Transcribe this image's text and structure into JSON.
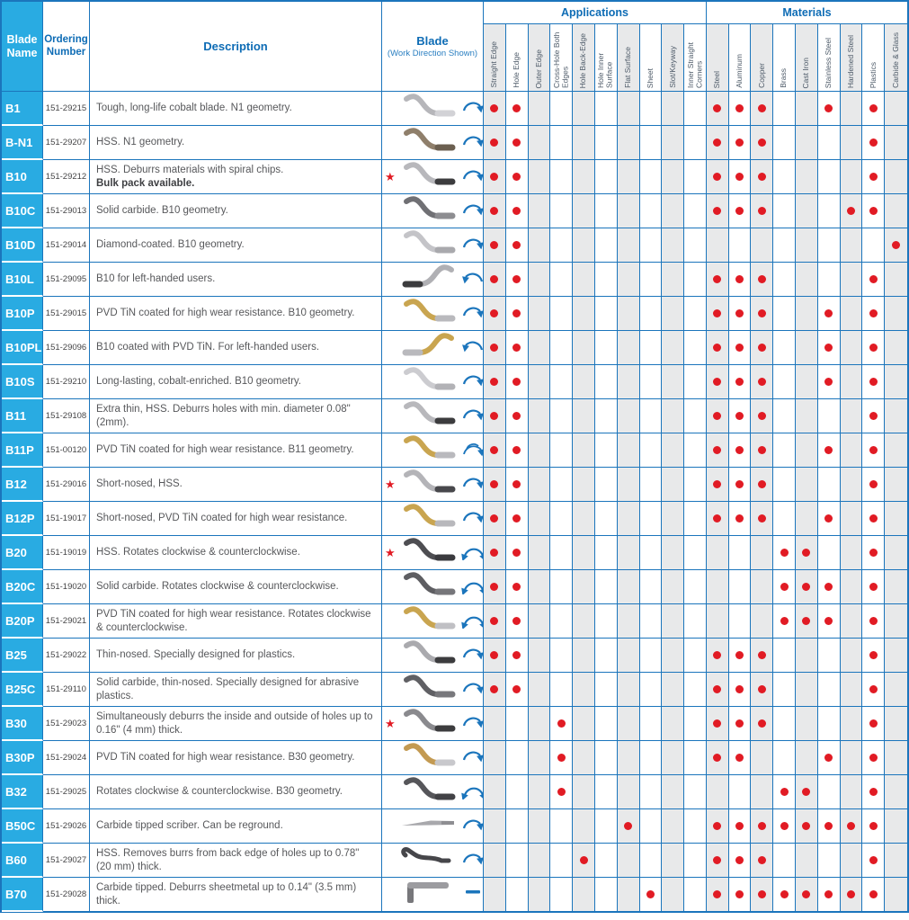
{
  "colors": {
    "brand_cyan": "#29abe2",
    "border_blue": "#1b75bc",
    "header_text_blue": "#0e6cb5",
    "dot_red": "#e11b24",
    "shade_gray": "#e8e9ea",
    "arrow_blue": "#1b75bc"
  },
  "header": {
    "blade_name": "Blade Name",
    "ordering_number": "Ordering Number",
    "description": "Description",
    "blade": "Blade",
    "blade_sub": "(Work Direction Shown)",
    "applications_group": "Applications",
    "materials_group": "Materials",
    "applications": [
      "Straight Edge",
      "Hole Edge",
      "Outer Edge",
      "Cross-Hole Both Edges",
      "Hole Back-Edge",
      "Hole Inner Surface",
      "Flat Surface",
      "Sheet",
      "Slot/Keyway",
      "Inner Straight Corners"
    ],
    "materials": [
      "Steel",
      "Aluminum",
      "Copper",
      "Brass",
      "Cast Iron",
      "Stainless Steel",
      "Hardened Steel",
      "Plastics",
      "Carbide & Glass"
    ]
  },
  "rows": [
    {
      "name": "B1",
      "order": "151-29215",
      "description": "Tough, long-life cobalt blade. N1 geometry.",
      "description_bold": "",
      "star": false,
      "blade": {
        "shape": "s",
        "color": "#b6b6ba",
        "tip": "#d2d2d6"
      },
      "arrow": "cw",
      "applications": [
        0,
        1
      ],
      "materials": [
        0,
        1,
        2,
        5,
        7
      ]
    },
    {
      "name": "B-N1",
      "order": "151-29207",
      "description": "HSS. N1 geometry.",
      "description_bold": "",
      "star": false,
      "blade": {
        "shape": "s",
        "color": "#8f7f6b",
        "tip": "#6b5f50"
      },
      "arrow": "cw",
      "applications": [
        0,
        1
      ],
      "materials": [
        0,
        1,
        2,
        7
      ]
    },
    {
      "name": "B10",
      "order": "151-29212",
      "description": "HSS. Deburrs materials with spiral chips.",
      "description_bold": "Bulk pack available.",
      "star": true,
      "blade": {
        "shape": "s",
        "color": "#b8b8bc",
        "tip": "#3c3c3e"
      },
      "arrow": "cw",
      "applications": [
        0,
        1
      ],
      "materials": [
        0,
        1,
        2,
        7
      ]
    },
    {
      "name": "B10C",
      "order": "151-29013",
      "description": "Solid carbide. B10 geometry.",
      "description_bold": "",
      "star": false,
      "blade": {
        "shape": "s",
        "color": "#707074",
        "tip": "#8d8d91"
      },
      "arrow": "cw",
      "applications": [
        0,
        1
      ],
      "materials": [
        0,
        1,
        2,
        6,
        7
      ]
    },
    {
      "name": "B10D",
      "order": "151-29014",
      "description": "Diamond-coated. B10 geometry.",
      "description_bold": "",
      "star": false,
      "blade": {
        "shape": "s",
        "color": "#c4c4c8",
        "tip": "#a9a9ad"
      },
      "arrow": "cw",
      "applications": [
        0,
        1
      ],
      "materials": [
        8
      ]
    },
    {
      "name": "B10L",
      "order": "151-29095",
      "description": "B10 for left-handed users.",
      "description_bold": "",
      "star": false,
      "blade": {
        "shape": "s-flip",
        "color": "#b0b0b4",
        "tip": "#3c3c3e"
      },
      "arrow": "ccw",
      "applications": [
        0,
        1
      ],
      "materials": [
        0,
        1,
        2,
        7
      ]
    },
    {
      "name": "B10P",
      "order": "151-29015",
      "description": "PVD TiN coated for high wear resistance. B10 geometry.",
      "description_bold": "",
      "star": false,
      "blade": {
        "shape": "s",
        "color": "#c9a550",
        "tip": "#b9b9bd"
      },
      "arrow": "cw",
      "applications": [
        0,
        1
      ],
      "materials": [
        0,
        1,
        2,
        5,
        7
      ]
    },
    {
      "name": "B10PL",
      "order": "151-29096",
      "description": "B10 coated with PVD TiN. For left-handed users.",
      "description_bold": "",
      "star": false,
      "blade": {
        "shape": "s-flip",
        "color": "#c9a550",
        "tip": "#b9b9bd"
      },
      "arrow": "ccw",
      "applications": [
        0,
        1
      ],
      "materials": [
        0,
        1,
        2,
        5,
        7
      ]
    },
    {
      "name": "B10S",
      "order": "151-29210",
      "description": "Long-lasting, cobalt-enriched. B10 geometry.",
      "description_bold": "",
      "star": false,
      "blade": {
        "shape": "s",
        "color": "#ccccd0",
        "tip": "#b2b2b6"
      },
      "arrow": "cw",
      "applications": [
        0,
        1
      ],
      "materials": [
        0,
        1,
        2,
        5,
        7
      ]
    },
    {
      "name": "B11",
      "order": "151-29108",
      "description": "Extra thin, HSS. Deburrs holes with min. diameter 0.08\" (2mm).",
      "description_bold": "",
      "star": false,
      "blade": {
        "shape": "s",
        "color": "#b8b8bc",
        "tip": "#3c3c3e"
      },
      "arrow": "cw",
      "applications": [
        0,
        1
      ],
      "materials": [
        0,
        1,
        2,
        7
      ]
    },
    {
      "name": "B11P",
      "order": "151-00120",
      "description": "PVD TiN coated for high wear resistance. B11 geometry.",
      "description_bold": "",
      "star": false,
      "blade": {
        "shape": "s",
        "color": "#c9a550",
        "tip": "#b9b9bd"
      },
      "arrow": "cw2",
      "applications": [
        0,
        1
      ],
      "materials": [
        0,
        1,
        2,
        5,
        7
      ]
    },
    {
      "name": "B12",
      "order": "151-29016",
      "description": "Short-nosed, HSS.",
      "description_bold": "",
      "star": true,
      "blade": {
        "shape": "s",
        "color": "#b4b4b8",
        "tip": "#48484c"
      },
      "arrow": "cw",
      "applications": [
        0,
        1
      ],
      "materials": [
        0,
        1,
        2,
        7
      ]
    },
    {
      "name": "B12P",
      "order": "151-19017",
      "description": "Short-nosed, PVD TiN coated for high wear resistance.",
      "description_bold": "",
      "star": false,
      "blade": {
        "shape": "s",
        "color": "#c9a550",
        "tip": "#b8b8bc"
      },
      "arrow": "cw",
      "applications": [
        0,
        1
      ],
      "materials": [
        0,
        1,
        2,
        5,
        7
      ]
    },
    {
      "name": "B20",
      "order": "151-19019",
      "description": "HSS. Rotates clockwise & counterclockwise.",
      "description_bold": "",
      "star": true,
      "blade": {
        "shape": "s",
        "color": "#4e4e52",
        "tip": "#3a3a3e"
      },
      "arrow": "both",
      "applications": [
        0,
        1
      ],
      "materials": [
        3,
        4,
        7
      ]
    },
    {
      "name": "B20C",
      "order": "151-19020",
      "description": "Solid carbide. Rotates clockwise & counterclockwise.",
      "description_bold": "",
      "star": false,
      "blade": {
        "shape": "s",
        "color": "#5e5e62",
        "tip": "#76767a"
      },
      "arrow": "both",
      "applications": [
        0,
        1
      ],
      "materials": [
        3,
        4,
        5,
        7
      ]
    },
    {
      "name": "B20P",
      "order": "151-29021",
      "description": "PVD TiN coated for high wear resistance. Rotates clockwise & counterclockwise.",
      "description_bold": "",
      "star": false,
      "blade": {
        "shape": "s",
        "color": "#c9a550",
        "tip": "#c0c0c4"
      },
      "arrow": "both",
      "applications": [
        0,
        1
      ],
      "materials": [
        3,
        4,
        5,
        7
      ]
    },
    {
      "name": "B25",
      "order": "151-29022",
      "description": "Thin-nosed. Specially designed for plastics.",
      "description_bold": "",
      "star": false,
      "blade": {
        "shape": "s",
        "color": "#aaaaae",
        "tip": "#3c3c3e"
      },
      "arrow": "cw",
      "applications": [
        0,
        1
      ],
      "materials": [
        0,
        1,
        2,
        7
      ]
    },
    {
      "name": "B25C",
      "order": "151-29110",
      "description": "Solid carbide, thin-nosed. Specially designed for abrasive plastics.",
      "description_bold": "",
      "star": false,
      "blade": {
        "shape": "s",
        "color": "#606064",
        "tip": "#78787c"
      },
      "arrow": "cw",
      "applications": [
        0,
        1
      ],
      "materials": [
        0,
        1,
        2,
        7
      ]
    },
    {
      "name": "B30",
      "order": "151-29023",
      "description": "Simultaneously deburrs the inside and outside of holes up to 0.16\" (4 mm) thick.",
      "description_bold": "",
      "star": true,
      "blade": {
        "shape": "s",
        "color": "#8a8a8e",
        "tip": "#3c3c3e"
      },
      "arrow": "cw",
      "applications": [
        3
      ],
      "materials": [
        0,
        1,
        2,
        7
      ]
    },
    {
      "name": "B30P",
      "order": "151-29024",
      "description": "PVD TiN coated for high wear resistance. B30 geometry.",
      "description_bold": "",
      "star": false,
      "blade": {
        "shape": "s",
        "color": "#c39a52",
        "tip": "#c8c8cc"
      },
      "arrow": "cw",
      "applications": [
        3
      ],
      "materials": [
        0,
        1,
        5,
        7
      ]
    },
    {
      "name": "B32",
      "order": "151-29025",
      "description": "Rotates clockwise & counterclockwise. B30 geometry.",
      "description_bold": "",
      "star": false,
      "blade": {
        "shape": "s",
        "color": "#56565a",
        "tip": "#424246"
      },
      "arrow": "both",
      "applications": [
        3
      ],
      "materials": [
        3,
        4,
        7
      ]
    },
    {
      "name": "B50C",
      "order": "151-29026",
      "description": "Carbide tipped scriber. Can be reground.",
      "description_bold": "",
      "star": false,
      "blade": {
        "shape": "straight",
        "color": "#a8a8ac",
        "tip": "#8e8e92"
      },
      "arrow": "cw",
      "applications": [
        6
      ],
      "materials": [
        0,
        1,
        2,
        3,
        4,
        5,
        6,
        7
      ]
    },
    {
      "name": "B60",
      "order": "151-29027",
      "description": "HSS. Removes burrs from back edge of holes up to 0.78\" (20 mm) thick.",
      "description_bold": "",
      "star": false,
      "blade": {
        "shape": "hook",
        "color": "#46464a",
        "tip": "#c4c4c8"
      },
      "arrow": "cw",
      "applications": [
        4
      ],
      "materials": [
        0,
        1,
        2,
        7
      ]
    },
    {
      "name": "B70",
      "order": "151-29028",
      "description": "Carbide tipped. Deburrs sheetmetal up to 0.14\" (3.5 mm) thick.",
      "description_bold": "",
      "star": false,
      "blade": {
        "shape": "L",
        "color": "#9c9ca0",
        "tip": "#77777b"
      },
      "arrow": "dash",
      "applications": [
        7
      ],
      "materials": [
        0,
        1,
        2,
        3,
        4,
        5,
        6,
        7
      ]
    }
  ]
}
